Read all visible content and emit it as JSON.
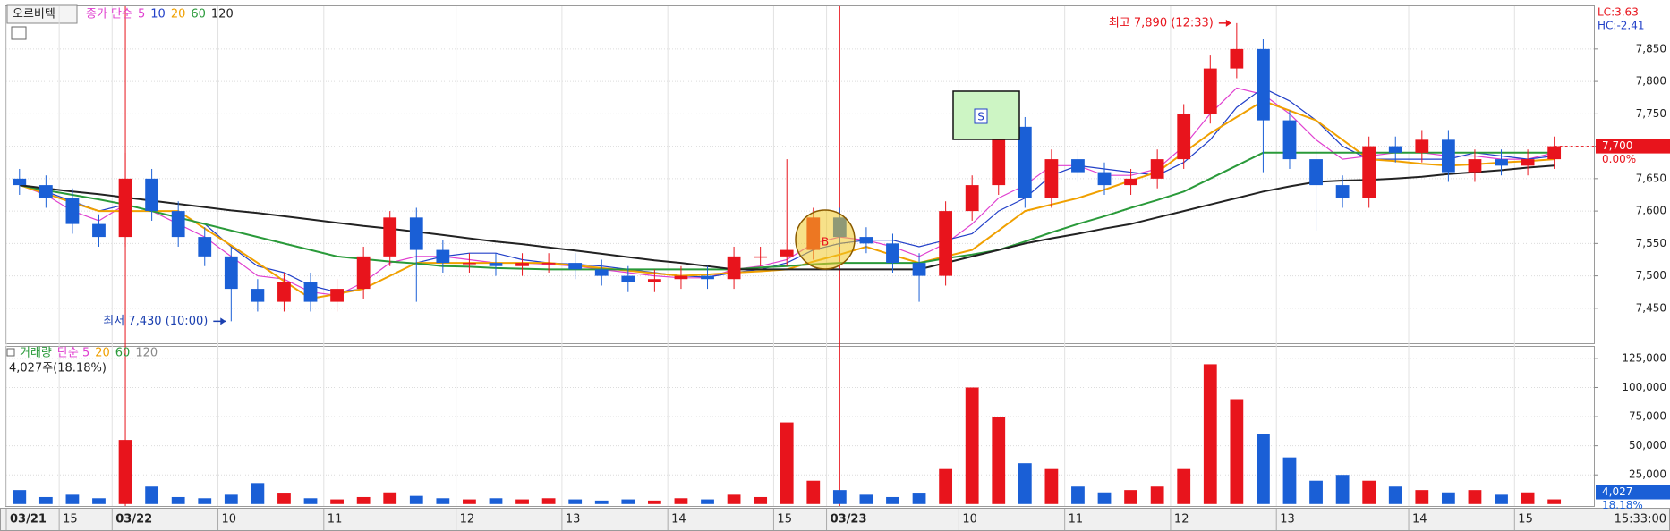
{
  "header": {
    "name": "오르비텍",
    "lc": "LC:3.63",
    "hc": "HC:-2.41",
    "time": "15:33:00"
  },
  "chart_data": [
    {
      "type": "candlestick",
      "legend_prefix": "종가 단순",
      "up_color": "#e8141c",
      "down_color": "#1a5fd6",
      "grid": true,
      "categories": [
        "03/21",
        null,
        "15",
        null,
        "03/22",
        null,
        null,
        null,
        "10",
        null,
        null,
        null,
        "11",
        null,
        null,
        null,
        null,
        "12",
        null,
        null,
        null,
        "13",
        null,
        null,
        null,
        "14",
        null,
        null,
        null,
        "15",
        null,
        "03/23",
        null,
        null,
        null,
        null,
        "10",
        null,
        null,
        null,
        "11",
        null,
        null,
        null,
        "12",
        null,
        null,
        null,
        "13",
        null,
        null,
        null,
        null,
        "14",
        null,
        null,
        null,
        "15",
        null
      ],
      "open": [
        7650,
        7640,
        7620,
        7580,
        7560,
        7650,
        7600,
        7560,
        7530,
        7480,
        7460,
        7490,
        7460,
        7480,
        7530,
        7590,
        7540,
        7520,
        7520,
        7515,
        7520,
        7520,
        7510,
        7500,
        7490,
        7495,
        7500,
        7495,
        7530,
        7530,
        7540,
        7590,
        7560,
        7550,
        7520,
        7500,
        7600,
        7640,
        7730,
        7620,
        7680,
        7660,
        7640,
        7650,
        7680,
        7750,
        7820,
        7850,
        7740,
        7680,
        7640,
        7620,
        7700,
        7690,
        7710,
        7660,
        7680,
        7670,
        7680
      ],
      "high": [
        7665,
        7655,
        7635,
        7595,
        7690,
        7665,
        7615,
        7575,
        7545,
        7495,
        7505,
        7505,
        7495,
        7545,
        7600,
        7605,
        7555,
        7535,
        7535,
        7535,
        7535,
        7535,
        7525,
        7515,
        7510,
        7515,
        7515,
        7545,
        7545,
        7680,
        7605,
        7605,
        7575,
        7565,
        7535,
        7615,
        7655,
        7770,
        7745,
        7695,
        7695,
        7675,
        7665,
        7695,
        7765,
        7840,
        7890,
        7865,
        7755,
        7695,
        7655,
        7715,
        7715,
        7725,
        7725,
        7695,
        7695,
        7695,
        7715
      ],
      "low": [
        7625,
        7605,
        7565,
        7545,
        7545,
        7585,
        7545,
        7515,
        7430,
        7445,
        7445,
        7445,
        7445,
        7465,
        7515,
        7460,
        7505,
        7505,
        7500,
        7500,
        7505,
        7495,
        7485,
        7475,
        7475,
        7480,
        7480,
        7480,
        7515,
        7515,
        7525,
        7545,
        7535,
        7505,
        7460,
        7485,
        7585,
        7625,
        7605,
        7605,
        7645,
        7625,
        7625,
        7635,
        7665,
        7735,
        7805,
        7660,
        7665,
        7570,
        7605,
        7605,
        7675,
        7675,
        7645,
        7645,
        7655,
        7655,
        7665
      ],
      "close": [
        7640,
        7620,
        7580,
        7560,
        7650,
        7600,
        7560,
        7530,
        7480,
        7460,
        7490,
        7460,
        7480,
        7530,
        7590,
        7540,
        7520,
        7520,
        7515,
        7520,
        7520,
        7510,
        7500,
        7490,
        7495,
        7500,
        7495,
        7530,
        7530,
        7540,
        7590,
        7560,
        7550,
        7520,
        7500,
        7600,
        7640,
        7730,
        7620,
        7680,
        7660,
        7640,
        7650,
        7680,
        7750,
        7820,
        7850,
        7740,
        7680,
        7640,
        7620,
        7700,
        7690,
        7710,
        7660,
        7680,
        7670,
        7680,
        7700
      ],
      "series": [
        {
          "name": "5",
          "color": "#e040d0",
          "values": [
            7640,
            7625,
            7600,
            7585,
            7610,
            7600,
            7580,
            7560,
            7530,
            7500,
            7495,
            7475,
            7470,
            7490,
            7520,
            7530,
            7530,
            7525,
            7520,
            7520,
            7518,
            7515,
            7510,
            7505,
            7500,
            7497,
            7497,
            7510,
            7515,
            7525,
            7550,
            7560,
            7555,
            7545,
            7530,
            7550,
            7580,
            7620,
            7640,
            7670,
            7670,
            7655,
            7655,
            7665,
            7700,
            7750,
            7790,
            7780,
            7750,
            7710,
            7680,
            7685,
            7690,
            7690,
            7685,
            7685,
            7680,
            7680,
            7690
          ]
        },
        {
          "name": "10",
          "color": "#2240c8",
          "values": [
            7640,
            7630,
            7615,
            7600,
            7610,
            7600,
            7590,
            7580,
            7545,
            7515,
            7505,
            7485,
            7475,
            7480,
            7500,
            7520,
            7530,
            7535,
            7535,
            7525,
            7520,
            7518,
            7515,
            7510,
            7505,
            7500,
            7498,
            7505,
            7510,
            7520,
            7540,
            7550,
            7555,
            7555,
            7545,
            7555,
            7565,
            7600,
            7620,
            7655,
            7670,
            7665,
            7660,
            7655,
            7675,
            7710,
            7760,
            7790,
            7770,
            7740,
            7700,
            7680,
            7680,
            7680,
            7680,
            7690,
            7685,
            7680,
            7685
          ]
        },
        {
          "name": "20",
          "color": "#f0a000",
          "values": [
            7640,
            7627,
            7613,
            7600,
            7600,
            7600,
            7600,
            7573,
            7547,
            7520,
            7492,
            7465,
            7472,
            7480,
            7500,
            7520,
            7520,
            7520,
            7520,
            7520,
            7520,
            7516,
            7512,
            7508,
            7504,
            7500,
            7502,
            7505,
            7507,
            7510,
            7522,
            7533,
            7545,
            7532,
            7520,
            7530,
            7540,
            7570,
            7600,
            7610,
            7620,
            7633,
            7647,
            7660,
            7690,
            7720,
            7745,
            7770,
            7755,
            7740,
            7710,
            7680,
            7677,
            7673,
            7670,
            7672,
            7675,
            7677,
            7680
          ]
        },
        {
          "name": "60",
          "color": "#2a9a3a",
          "values": [
            7640,
            7632,
            7625,
            7618,
            7610,
            7600,
            7590,
            7580,
            7570,
            7560,
            7550,
            7540,
            7530,
            7526,
            7522,
            7519,
            7515,
            7514,
            7512,
            7511,
            7510,
            7510,
            7510,
            7510,
            7510,
            7510,
            7510,
            7510,
            7513,
            7515,
            7518,
            7520,
            7520,
            7520,
            7520,
            7527,
            7533,
            7540,
            7553,
            7567,
            7580,
            7592,
            7605,
            7617,
            7630,
            7650,
            7670,
            7690,
            7690,
            7690,
            7690,
            7690,
            7690,
            7690,
            7690,
            7690,
            7690,
            7690,
            7690
          ]
        },
        {
          "name": "120",
          "color": "#222222",
          "values": [
            7640,
            7635,
            7630,
            7626,
            7621,
            7616,
            7611,
            7606,
            7601,
            7597,
            7592,
            7587,
            7582,
            7577,
            7573,
            7568,
            7563,
            7558,
            7553,
            7549,
            7544,
            7539,
            7534,
            7529,
            7524,
            7520,
            7515,
            7510,
            7510,
            7510,
            7510,
            7510,
            7510,
            7510,
            7510,
            7520,
            7530,
            7540,
            7550,
            7558,
            7565,
            7573,
            7580,
            7590,
            7600,
            7610,
            7620,
            7630,
            7638,
            7645,
            7647,
            7648,
            7650,
            7653,
            7657,
            7660,
            7663,
            7667,
            7670
          ]
        }
      ],
      "ylim": [
        7396,
        7916
      ],
      "yticks": [
        {
          "value": 7450,
          "label": "7,450"
        },
        {
          "value": 7500,
          "label": "7,500"
        },
        {
          "value": 7550,
          "label": "7,550"
        },
        {
          "value": 7600,
          "label": "7,600"
        },
        {
          "value": 7650,
          "label": "7,650"
        },
        {
          "value": 7700,
          "label": "7,700"
        },
        {
          "value": 7750,
          "label": "7,750"
        },
        {
          "value": 7800,
          "label": "7,800"
        },
        {
          "value": 7850,
          "label": "7,850"
        }
      ],
      "last_price": {
        "value": 7700,
        "label": "7,700"
      },
      "change": {
        "value": 0,
        "label": "0.00%"
      },
      "annotations": [
        {
          "text": "최고 7,890 (12:33)",
          "value": 7890,
          "color": "#e8141c"
        },
        {
          "text": "최저 7,430 (10:00)",
          "value": 7430,
          "color": "#1a3fb0"
        }
      ],
      "signals": [
        {
          "label": "S"
        },
        {
          "label": "B"
        }
      ]
    },
    {
      "type": "bar",
      "title": "거래량",
      "summary": "4,027주(18.18%)",
      "legend": [
        {
          "name": "단순 5",
          "color": "#e040d0"
        },
        {
          "name": "20",
          "color": "#f0a000"
        },
        {
          "name": "60",
          "color": "#2a9a3a"
        },
        {
          "name": "120",
          "color": "#888888"
        }
      ],
      "values": [
        12000,
        6000,
        8000,
        5000,
        55000,
        15000,
        6000,
        5000,
        8000,
        18000,
        9000,
        5000,
        4000,
        6000,
        10000,
        7000,
        5000,
        4000,
        5000,
        4000,
        5000,
        4000,
        3000,
        4000,
        3000,
        5000,
        4000,
        8000,
        6000,
        70000,
        20000,
        12000,
        8000,
        6000,
        9000,
        30000,
        100000,
        75000,
        35000,
        30000,
        15000,
        10000,
        12000,
        15000,
        30000,
        120000,
        90000,
        60000,
        40000,
        20000,
        25000,
        20000,
        15000,
        12000,
        10000,
        12000,
        8000,
        10000,
        4027
      ],
      "ylim": [
        -1700,
        134900
      ],
      "yticks": [
        {
          "value": 25000,
          "label": "25,000"
        },
        {
          "value": 50000,
          "label": "50,000"
        },
        {
          "value": 75000,
          "label": "75,000"
        },
        {
          "value": 100000,
          "label": "100,000"
        },
        {
          "value": 125000,
          "label": "125,000"
        }
      ],
      "last_value": {
        "value": 4027,
        "label": "4,027"
      },
      "ratio": {
        "value": 18.18,
        "label": "18.18%"
      }
    }
  ]
}
